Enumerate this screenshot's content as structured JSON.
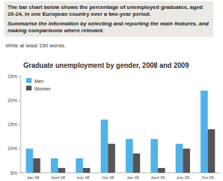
{
  "chart_data": {
    "type": "bar",
    "title": "Graduate unemployment by gender, 2008 and 2009",
    "annotations": [
      "The bar chart below shows the percentage of unemployed graduates, aged 20-24, in one European country over a two-year period.",
      "Summarise the information by selecting and reporting the main features, and making comparisons where relevant.",
      "Write at least 150 words."
    ],
    "categories": [
      "Jan 08",
      "April 08",
      "July 08",
      "Oct 08",
      "Jan 09",
      "April 09",
      "July 09",
      "Oct 09"
    ],
    "series": [
      {
        "name": "Men",
        "color": "#4fb3e8",
        "values": [
          10,
          8,
          8,
          16,
          12,
          12,
          11,
          22
        ]
      },
      {
        "name": "Women",
        "color": "#555555",
        "values": [
          8,
          6,
          6,
          11,
          9,
          6,
          10,
          14
        ]
      }
    ],
    "ylim": [
      5,
      25
    ],
    "yticks": [
      {
        "value": 5,
        "label": "5%"
      },
      {
        "value": 10,
        "label": "10%"
      },
      {
        "value": 15,
        "label": "15%"
      },
      {
        "value": 20,
        "label": "20%"
      },
      {
        "value": 25,
        "label": "25%"
      }
    ],
    "grid": false,
    "legend": "top-left"
  }
}
